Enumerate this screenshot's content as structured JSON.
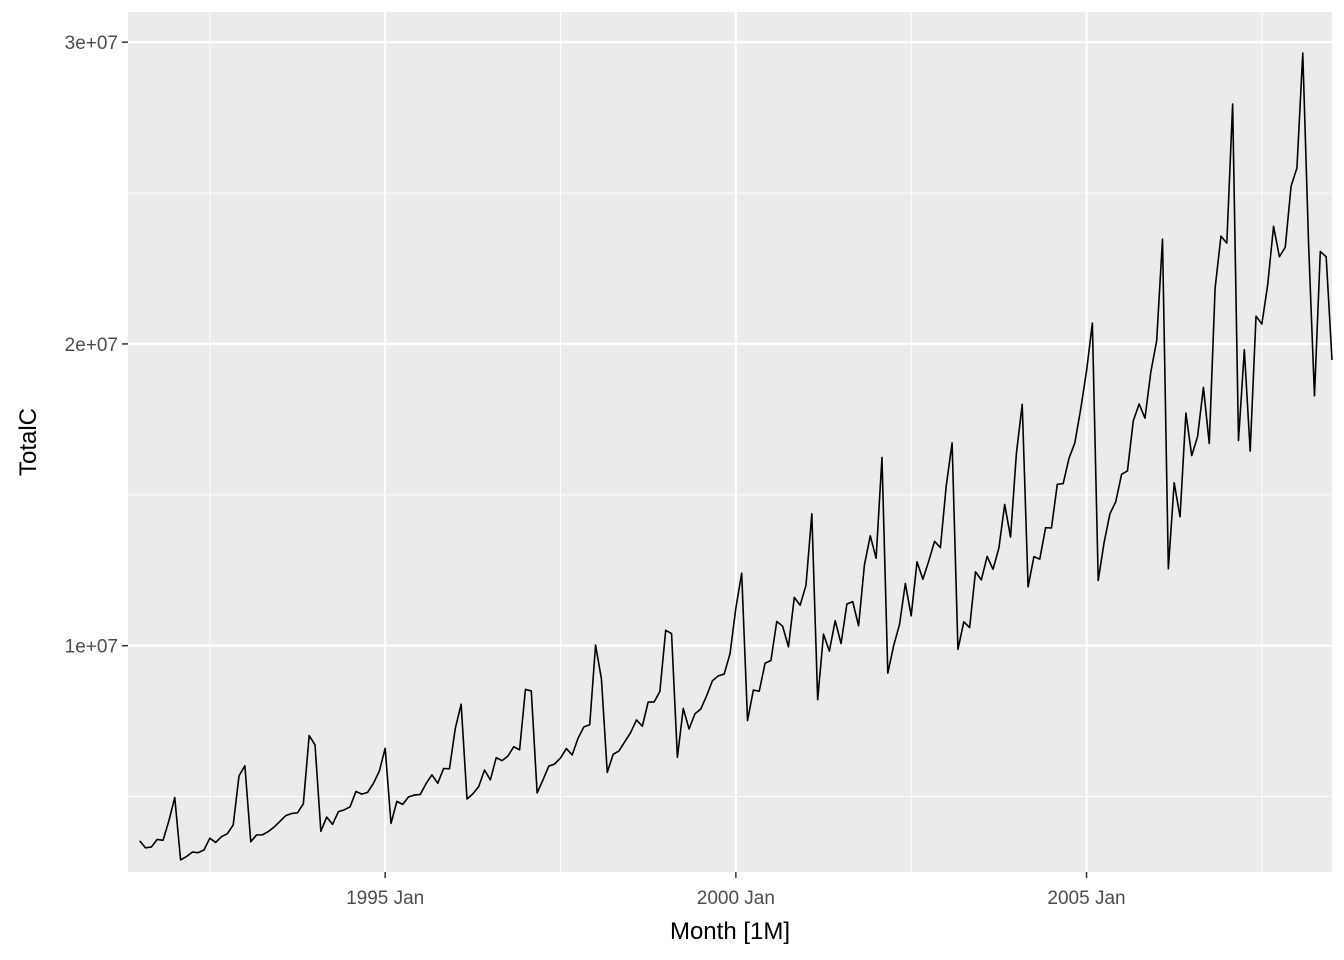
{
  "colors": {
    "panel_background": "#EBEBEB",
    "grid_line": "#FFFFFF",
    "series_line": "#000000",
    "tick_text": "#4D4D4D",
    "tick_mark": "#333333"
  },
  "chart_data": {
    "type": "line",
    "title": "",
    "xlabel": "Month [1M]",
    "ylabel": "TotalC",
    "grid": true,
    "x_range": [
      "1991-05",
      "2008-07"
    ],
    "ylim": [
      2500000,
      31000000
    ],
    "x_ticks": [
      {
        "date": "1995-01",
        "label": "1995 Jan"
      },
      {
        "date": "2000-01",
        "label": "2000 Jan"
      },
      {
        "date": "2005-01",
        "label": "2005 Jan"
      }
    ],
    "x_minor_ticks": [
      "1992-07",
      "1997-07",
      "2002-07",
      "2007-07"
    ],
    "y_ticks": [
      {
        "value": 10000000,
        "label": "1e+07"
      },
      {
        "value": 20000000,
        "label": "2e+07"
      },
      {
        "value": 30000000,
        "label": "3e+07"
      }
    ],
    "y_minor_ticks": [
      5000000,
      15000000,
      25000000
    ],
    "series": [
      {
        "start": "1991-07",
        "frequency": "month",
        "values": [
          3530000,
          3300000,
          3330000,
          3580000,
          3550000,
          4200000,
          4970000,
          2900000,
          3010000,
          3160000,
          3140000,
          3230000,
          3620000,
          3480000,
          3670000,
          3770000,
          4060000,
          5690000,
          6020000,
          3500000,
          3730000,
          3730000,
          3840000,
          3990000,
          4180000,
          4370000,
          4440000,
          4460000,
          4760000,
          7020000,
          6710000,
          3850000,
          4320000,
          4080000,
          4500000,
          4560000,
          4660000,
          5170000,
          5080000,
          5140000,
          5440000,
          5840000,
          6600000,
          4110000,
          4840000,
          4740000,
          4990000,
          5050000,
          5070000,
          5430000,
          5720000,
          5440000,
          5930000,
          5920000,
          7260000,
          8060000,
          4920000,
          5090000,
          5330000,
          5880000,
          5550000,
          6290000,
          6190000,
          6340000,
          6650000,
          6550000,
          8550000,
          8500000,
          5120000,
          5550000,
          6010000,
          6080000,
          6280000,
          6590000,
          6380000,
          6930000,
          7310000,
          7380000,
          10020000,
          8900000,
          5800000,
          6400000,
          6510000,
          6820000,
          7120000,
          7540000,
          7330000,
          8130000,
          8130000,
          8480000,
          10510000,
          10400000,
          6300000,
          7920000,
          7240000,
          7740000,
          7900000,
          8340000,
          8840000,
          9000000,
          9060000,
          9730000,
          11240000,
          12400000,
          7520000,
          8530000,
          8490000,
          9420000,
          9510000,
          10800000,
          10650000,
          9960000,
          11600000,
          11340000,
          12000000,
          14370000,
          8210000,
          10380000,
          9820000,
          10830000,
          10070000,
          11380000,
          11460000,
          10660000,
          12680000,
          13640000,
          12900000,
          16240000,
          9090000,
          10000000,
          10700000,
          12060000,
          10990000,
          12780000,
          12200000,
          12800000,
          13460000,
          13250000,
          15300000,
          16720000,
          9880000,
          10790000,
          10600000,
          12450000,
          12180000,
          12960000,
          12530000,
          13230000,
          14680000,
          13600000,
          16370000,
          18000000,
          11950000,
          12950000,
          12870000,
          13910000,
          13900000,
          15350000,
          15370000,
          16210000,
          16720000,
          17840000,
          19100000,
          20690000,
          12160000,
          13410000,
          14370000,
          14770000,
          15680000,
          15790000,
          17450000,
          18010000,
          17540000,
          19070000,
          20100000,
          23470000,
          12550000,
          15400000,
          14270000,
          17710000,
          16300000,
          16930000,
          18560000,
          16700000,
          21850000,
          23570000,
          23340000,
          27950000,
          16800000,
          19810000,
          16450000,
          20920000,
          20660000,
          21960000,
          23900000,
          22890000,
          23200000,
          25230000,
          25830000,
          29640000,
          23270000,
          18280000,
          23060000,
          22890000,
          19470000
        ]
      }
    ]
  }
}
